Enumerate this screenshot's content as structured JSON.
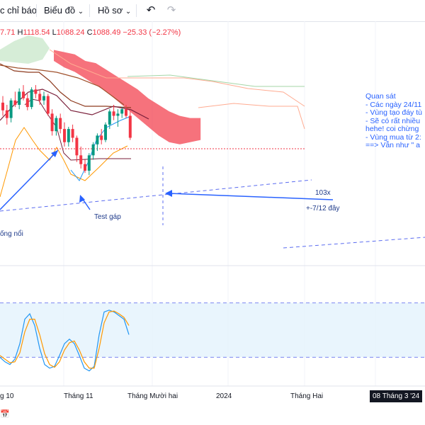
{
  "toolbar": {
    "indicators_label": "c chỉ báo",
    "chart_label": "Biểu đồ",
    "profile_label": "Hồ sơ",
    "undo_icon": "undo-icon",
    "redo_icon": "redo-icon"
  },
  "ohlc": {
    "o_value": "7.71",
    "h_key": "H",
    "h_value": "1118.54",
    "l_key": "L",
    "l_value": "1088.24",
    "c_key": "C",
    "c_value": "1088.49",
    "change": "−25.33 (−2.27%)"
  },
  "colors": {
    "up": "#089981",
    "down": "#f23645",
    "cloud_down": "#f23645",
    "cloud_up": "#a5d6a7",
    "stoch_k": "#2196f3",
    "stoch_d": "#ff9800",
    "trendline": "#2962ff"
  },
  "annotations": {
    "note_lines": [
      "Quan sát",
      "- Các ngày 24/11",
      "- Vùng tạo đáy tù",
      "- Sẽ có rất nhiều",
      "hehe! coi chừng",
      "- Vùng mua từ 2:",
      "==> Vẫn như \" a"
    ],
    "test_gap": "Test gáp",
    "song_noi": "ống nổi",
    "label_103x": "103x",
    "label_712": "+-7/12  đây"
  },
  "time_axis": {
    "labels": [
      "g 10",
      "Tháng 11",
      "Tháng Mười hai",
      "2024",
      "Tháng Hai"
    ],
    "crosshair_date": "08 Tháng 3 '24"
  },
  "chart_data": {
    "type": "candlestick",
    "title": "",
    "xlabel": "",
    "ylabel": "",
    "candles": [
      {
        "o": 42,
        "h": 48,
        "l": 30,
        "c": 35
      },
      {
        "o": 35,
        "h": 40,
        "l": 22,
        "c": 28
      },
      {
        "o": 28,
        "h": 46,
        "l": 24,
        "c": 44
      },
      {
        "o": 44,
        "h": 52,
        "l": 38,
        "c": 40
      },
      {
        "o": 40,
        "h": 55,
        "l": 36,
        "c": 52
      },
      {
        "o": 52,
        "h": 58,
        "l": 44,
        "c": 46
      },
      {
        "o": 46,
        "h": 50,
        "l": 35,
        "c": 38
      },
      {
        "o": 38,
        "h": 56,
        "l": 36,
        "c": 54
      },
      {
        "o": 54,
        "h": 58,
        "l": 46,
        "c": 50
      },
      {
        "o": 50,
        "h": 54,
        "l": 40,
        "c": 44
      },
      {
        "o": 44,
        "h": 52,
        "l": 40,
        "c": 48
      },
      {
        "o": 48,
        "h": 50,
        "l": 30,
        "c": 32
      },
      {
        "o": 32,
        "h": 36,
        "l": 12,
        "c": 16
      },
      {
        "o": 16,
        "h": 30,
        "l": 12,
        "c": 28
      },
      {
        "o": 28,
        "h": 32,
        "l": 14,
        "c": 18
      },
      {
        "o": 18,
        "h": 24,
        "l": 2,
        "c": 6
      },
      {
        "o": 6,
        "h": 20,
        "l": 2,
        "c": 18
      },
      {
        "o": 18,
        "h": 22,
        "l": 6,
        "c": 10
      },
      {
        "o": 10,
        "h": 12,
        "l": -12,
        "c": -6
      },
      {
        "o": -6,
        "h": 2,
        "l": -18,
        "c": -14
      },
      {
        "o": -14,
        "h": -10,
        "l": -22,
        "c": -20
      },
      {
        "o": -20,
        "h": -4,
        "l": -24,
        "c": -6
      },
      {
        "o": -6,
        "h": 6,
        "l": -10,
        "c": 4
      },
      {
        "o": 4,
        "h": 14,
        "l": -2,
        "c": 12
      },
      {
        "o": 12,
        "h": 18,
        "l": 4,
        "c": 8
      },
      {
        "o": 8,
        "h": 24,
        "l": 6,
        "c": 22
      },
      {
        "o": 22,
        "h": 36,
        "l": 18,
        "c": 34
      },
      {
        "o": 34,
        "h": 40,
        "l": 26,
        "c": 30
      },
      {
        "o": 30,
        "h": 36,
        "l": 20,
        "c": 32
      },
      {
        "o": 32,
        "h": 38,
        "l": 28,
        "c": 36
      },
      {
        "o": 36,
        "h": 40,
        "l": 28,
        "c": 30
      },
      {
        "o": 30,
        "h": 34,
        "l": 8,
        "c": 10
      }
    ],
    "cloud_red_top": [
      90,
      88,
      86,
      80,
      78,
      72,
      66,
      60,
      54,
      46,
      40,
      34,
      30,
      28,
      28
    ],
    "cloud_red_bottom": [
      80,
      74,
      70,
      64,
      58,
      52,
      44,
      36,
      28,
      20,
      12,
      6,
      4,
      6,
      8
    ],
    "stochastic": {
      "k": [
        20,
        15,
        12,
        18,
        35,
        62,
        68,
        55,
        30,
        12,
        8,
        10,
        22,
        35,
        40,
        35,
        22,
        8,
        5,
        10,
        45,
        70,
        72,
        70,
        66,
        62,
        45
      ],
      "d": [
        22,
        18,
        14,
        15,
        25,
        48,
        62,
        62,
        45,
        24,
        12,
        9,
        15,
        28,
        36,
        38,
        28,
        15,
        8,
        8,
        30,
        58,
        70,
        71,
        68,
        64,
        55
      ],
      "upper": 80,
      "lower": 20
    }
  }
}
